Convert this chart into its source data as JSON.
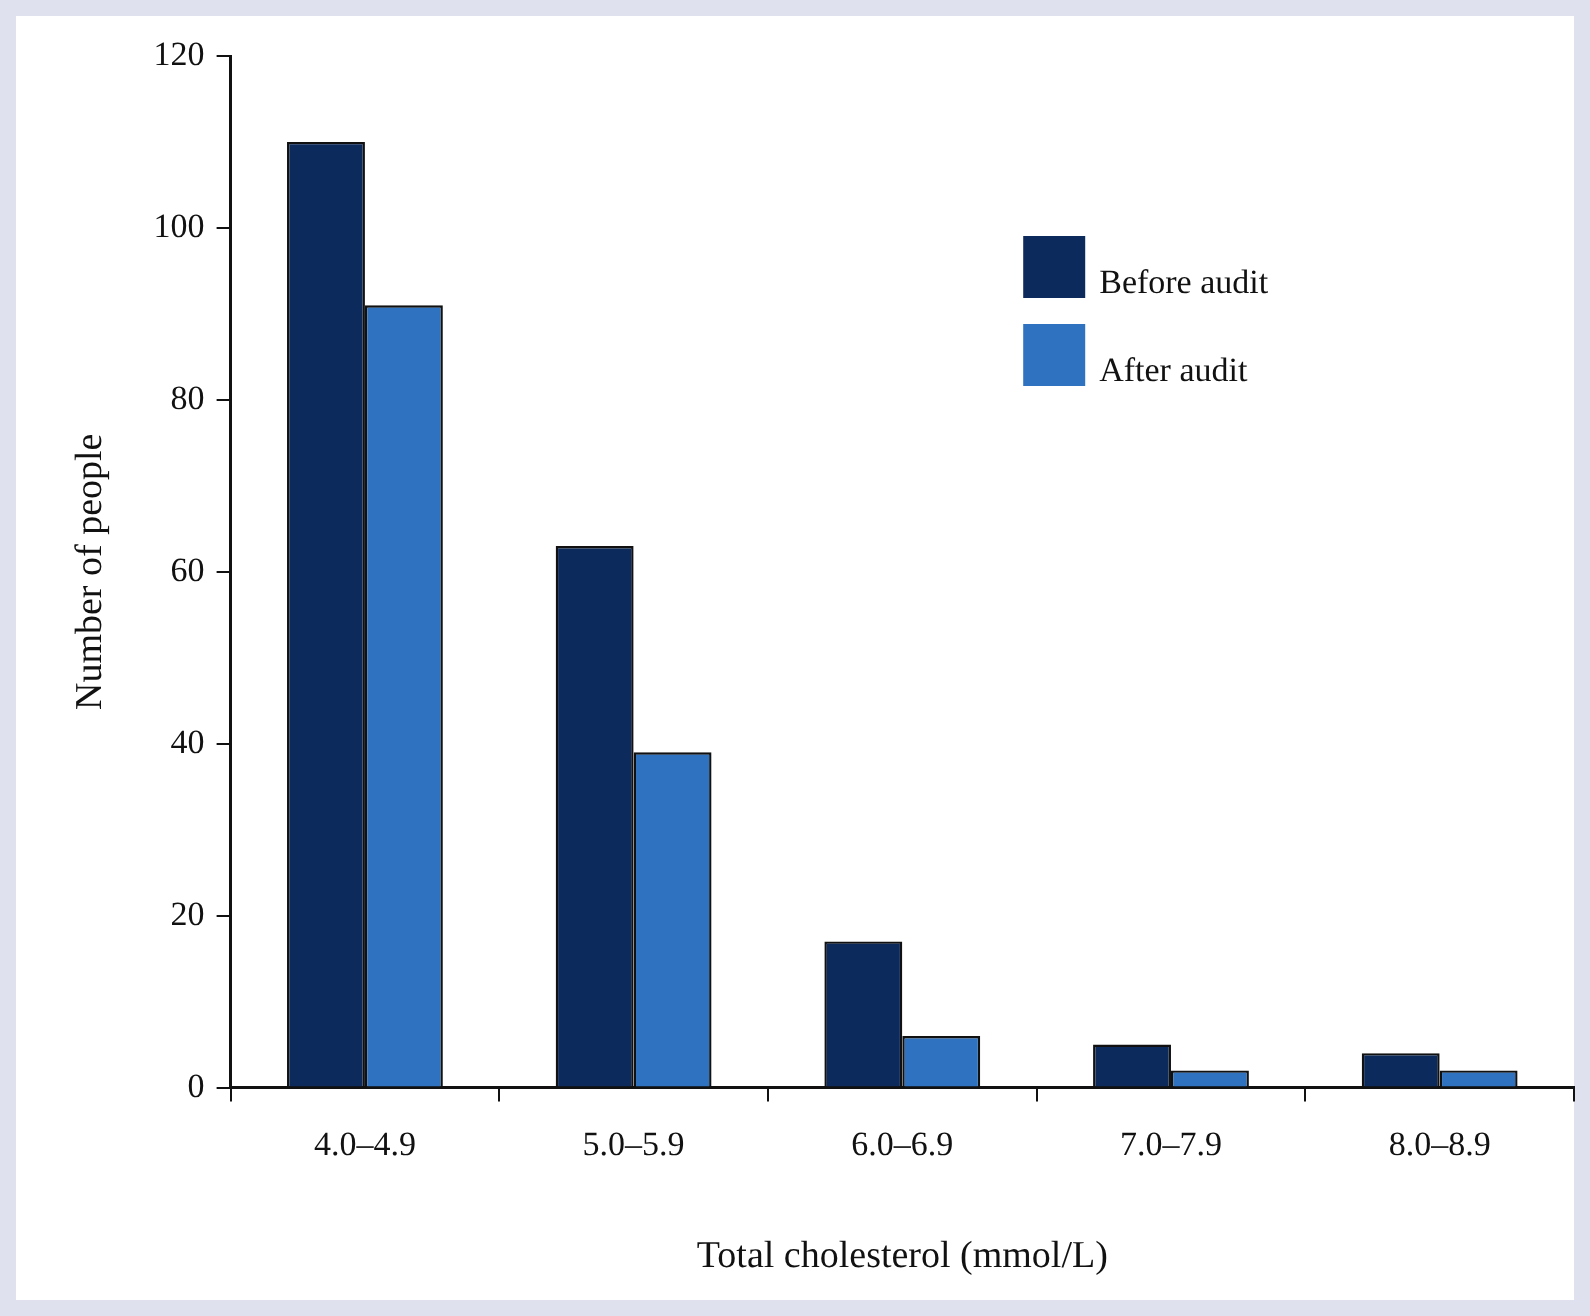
{
  "chart_data": {
    "type": "bar",
    "xlabel": "Total cholesterol (mmol/L)",
    "ylabel": "Number of people",
    "categories": [
      "4.0–4.9",
      "5.0–5.9",
      "6.0–6.9",
      "7.0–7.9",
      "8.0–8.9"
    ],
    "series": [
      {
        "name": "Before audit",
        "color": "#0d2a5c",
        "values": [
          110,
          63,
          17,
          5,
          4
        ]
      },
      {
        "name": "After audit",
        "color": "#2e72c0",
        "values": [
          91,
          39,
          6,
          2,
          2
        ]
      }
    ],
    "ylim": [
      0,
      120
    ],
    "yticks": [
      0,
      20,
      40,
      60,
      80,
      100,
      120
    ],
    "grid": false,
    "legend": "top right"
  }
}
